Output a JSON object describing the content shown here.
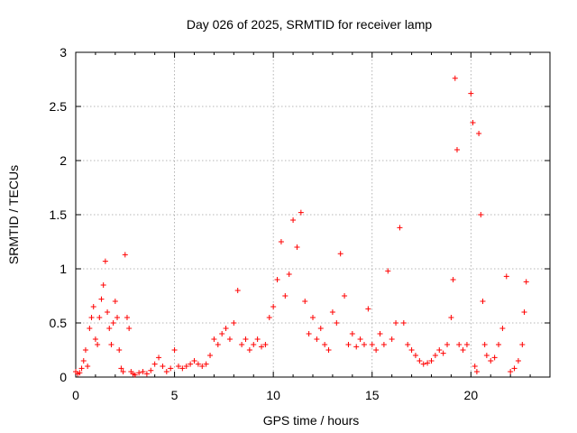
{
  "chart_data": {
    "type": "scatter",
    "title": "Day 026 of 2025, SRMTID for receiver lamp",
    "xlabel": "GPS time / hours",
    "ylabel": "SRMTID / TECUs",
    "xlim": [
      0,
      24
    ],
    "ylim": [
      0,
      3
    ],
    "xticks": [
      0,
      5,
      10,
      15,
      20
    ],
    "yticks": [
      0,
      0.5,
      1,
      1.5,
      2,
      2.5,
      3
    ],
    "ytick_labels": [
      "0",
      "0.5",
      "1",
      "1.5",
      "2",
      "2.5",
      "3"
    ],
    "grid": true,
    "marker": "plus",
    "color": "#ff0000",
    "series": [
      {
        "name": "SRMTID",
        "x": [
          0.0,
          0.1,
          0.2,
          0.3,
          0.4,
          0.5,
          0.6,
          0.7,
          0.8,
          0.9,
          1.0,
          1.1,
          1.2,
          1.3,
          1.4,
          1.5,
          1.6,
          1.7,
          1.8,
          1.9,
          2.0,
          2.1,
          2.2,
          2.3,
          2.4,
          2.5,
          2.6,
          2.7,
          2.8,
          2.9,
          3.0,
          3.2,
          3.4,
          3.6,
          3.8,
          4.0,
          4.2,
          4.4,
          4.6,
          4.8,
          5.0,
          5.2,
          5.4,
          5.6,
          5.8,
          6.0,
          6.2,
          6.4,
          6.6,
          6.8,
          7.0,
          7.2,
          7.4,
          7.6,
          7.8,
          8.0,
          8.2,
          8.4,
          8.6,
          8.8,
          9.0,
          9.2,
          9.4,
          9.6,
          9.8,
          10.0,
          10.2,
          10.4,
          10.6,
          10.8,
          11.0,
          11.2,
          11.4,
          11.6,
          11.8,
          12.0,
          12.2,
          12.4,
          12.6,
          12.8,
          13.0,
          13.2,
          13.4,
          13.6,
          13.8,
          14.0,
          14.2,
          14.4,
          14.6,
          14.8,
          15.0,
          15.2,
          15.4,
          15.6,
          15.8,
          16.0,
          16.2,
          16.4,
          16.6,
          16.8,
          17.0,
          17.2,
          17.4,
          17.6,
          17.8,
          18.0,
          18.2,
          18.4,
          18.6,
          18.8,
          19.0,
          19.1,
          19.2,
          19.3,
          19.4,
          19.6,
          19.8,
          20.0,
          20.1,
          20.2,
          20.3,
          20.4,
          20.5,
          20.6,
          20.7,
          20.8,
          21.0,
          21.2,
          21.4,
          21.6,
          21.8,
          22.0,
          22.2,
          22.4,
          22.6,
          22.7,
          22.8
        ],
        "y": [
          0.05,
          0.03,
          0.04,
          0.08,
          0.15,
          0.25,
          0.1,
          0.45,
          0.55,
          0.65,
          0.35,
          0.3,
          0.55,
          0.72,
          0.85,
          1.07,
          0.6,
          0.45,
          0.3,
          0.5,
          0.7,
          0.55,
          0.25,
          0.08,
          0.05,
          1.13,
          0.55,
          0.45,
          0.05,
          0.03,
          0.02,
          0.04,
          0.05,
          0.03,
          0.06,
          0.12,
          0.18,
          0.1,
          0.05,
          0.08,
          0.25,
          0.1,
          0.08,
          0.1,
          0.12,
          0.15,
          0.12,
          0.1,
          0.12,
          0.2,
          0.35,
          0.3,
          0.4,
          0.45,
          0.35,
          0.5,
          0.8,
          0.3,
          0.35,
          0.25,
          0.3,
          0.35,
          0.28,
          0.3,
          0.55,
          0.65,
          0.9,
          1.25,
          0.75,
          0.95,
          1.45,
          1.2,
          1.52,
          0.7,
          0.4,
          0.55,
          0.35,
          0.45,
          0.3,
          0.25,
          0.6,
          0.5,
          1.14,
          0.75,
          0.3,
          0.4,
          0.28,
          0.35,
          0.3,
          0.63,
          0.3,
          0.25,
          0.4,
          0.3,
          0.98,
          0.35,
          0.5,
          1.38,
          0.5,
          0.3,
          0.25,
          0.2,
          0.15,
          0.12,
          0.13,
          0.15,
          0.2,
          0.25,
          0.22,
          0.3,
          0.55,
          0.9,
          2.76,
          2.1,
          0.3,
          0.25,
          0.3,
          2.62,
          2.35,
          0.1,
          0.05,
          2.25,
          1.5,
          0.7,
          0.3,
          0.2,
          0.15,
          0.18,
          0.3,
          0.45,
          0.93,
          0.05,
          0.08,
          0.15,
          0.3,
          0.6,
          0.88
        ]
      }
    ]
  }
}
